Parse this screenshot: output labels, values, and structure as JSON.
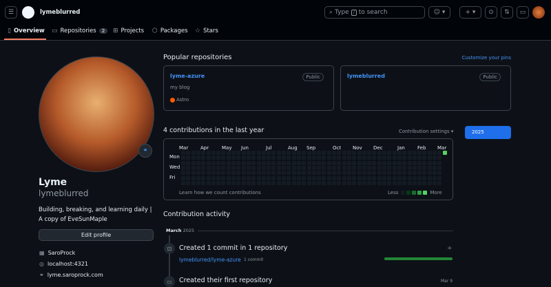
{
  "header": {
    "username": "lymeblurred",
    "search_placeholder_pre": "Type",
    "search_key": "/",
    "search_placeholder_post": "to search"
  },
  "tabs": [
    {
      "label": "Overview",
      "active": true
    },
    {
      "label": "Repositories",
      "count": "2"
    },
    {
      "label": "Projects"
    },
    {
      "label": "Packages"
    },
    {
      "label": "Stars"
    }
  ],
  "profile": {
    "name": "Lyme",
    "login": "lymeblurred",
    "bio_line1": "Building, breaking, and learning daily |",
    "bio_line2": "A copy of EveSunMaple",
    "edit_label": "Edit profile",
    "company": "SaroProck",
    "location": "localhost:4321",
    "website": "lyme.saroprock.com"
  },
  "popular": {
    "title": "Popular repositories",
    "customize": "Customize your pins",
    "repos": [
      {
        "name": "lyme-azure",
        "visibility": "Public",
        "description": "my blog",
        "language": "Astro",
        "language_color": "#ff5a03"
      },
      {
        "name": "lymeblurred",
        "visibility": "Public"
      }
    ]
  },
  "contrib": {
    "title": "4 contributions in the last year",
    "settings": "Contribution settings",
    "year": "2025",
    "months": [
      "Mar",
      "Apr",
      "May",
      "Jun",
      "Jul",
      "Aug",
      "Sep",
      "Oct",
      "Nov",
      "Dec",
      "Jan",
      "Feb",
      "Mar"
    ],
    "days": [
      "Mon",
      "Wed",
      "Fri"
    ],
    "learn": "Learn how we count contributions",
    "less": "Less",
    "more": "More",
    "active_cells": [
      {
        "week": 52,
        "day": 0,
        "level": 3
      }
    ],
    "level_colors": [
      "#151b23",
      "#033a16",
      "#196c2e",
      "#2ea043",
      "#56d364"
    ]
  },
  "activity": {
    "title": "Contribution activity",
    "month": "March",
    "year": "2025",
    "item1_title": "Created 1 commit in 1 repository",
    "item1_repo": "lymeblurred/lyme-azure",
    "item1_count": "1 commit",
    "item1_progress": 1.0,
    "item2_title": "Created their first repository",
    "item2_date": "Mar 9"
  }
}
